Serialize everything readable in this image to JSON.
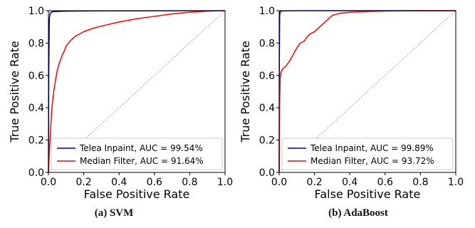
{
  "captions": [
    "(a) SVM",
    "(b) AdaBoost"
  ],
  "chart_data": [
    {
      "type": "line",
      "xlabel": "False Positive Rate",
      "ylabel": "True Positive Rate",
      "xlim": [
        0,
        1
      ],
      "ylim": [
        0,
        1
      ],
      "xticks": [
        "0.0",
        "0.2",
        "0.4",
        "0.6",
        "0.8",
        "1.0"
      ],
      "yticks": [
        "0.0",
        "0.2",
        "0.4",
        "0.6",
        "0.8",
        "1.0"
      ],
      "legend_position": "lower-right",
      "grid": false,
      "diagonal": {
        "style": "dotted",
        "color": "#888888"
      },
      "series": [
        {
          "name": "Telea Inpaint, AUC = 99.54%",
          "color": "#00008b",
          "x": [
            0,
            0.002,
            0.005,
            0.01,
            0.02,
            0.04,
            0.1,
            0.3,
            1.0
          ],
          "y": [
            0,
            0.6,
            0.95,
            0.985,
            0.993,
            0.995,
            0.997,
            0.999,
            1.0
          ]
        },
        {
          "name": "Median Filter, AUC = 91.64%",
          "color": "#ff0000",
          "x": [
            0,
            0.005,
            0.01,
            0.015,
            0.02,
            0.03,
            0.04,
            0.05,
            0.06,
            0.07,
            0.08,
            0.09,
            0.1,
            0.12,
            0.15,
            0.2,
            0.25,
            0.3,
            0.4,
            0.5,
            0.6,
            0.7,
            0.8,
            0.9,
            1.0
          ],
          "y": [
            0,
            0.12,
            0.22,
            0.32,
            0.4,
            0.5,
            0.57,
            0.63,
            0.67,
            0.7,
            0.73,
            0.75,
            0.78,
            0.81,
            0.84,
            0.87,
            0.89,
            0.905,
            0.93,
            0.95,
            0.965,
            0.98,
            0.99,
            0.997,
            1.0
          ]
        }
      ]
    },
    {
      "type": "line",
      "xlabel": "False Positive Rate",
      "ylabel": "True Positive Rate",
      "xlim": [
        0,
        1
      ],
      "ylim": [
        0,
        1
      ],
      "xticks": [
        "0.0",
        "0.2",
        "0.4",
        "0.6",
        "0.8",
        "1.0"
      ],
      "yticks": [
        "0.0",
        "0.2",
        "0.4",
        "0.6",
        "0.8",
        "1.0"
      ],
      "legend_position": "lower-right",
      "grid": false,
      "diagonal": {
        "style": "dotted",
        "color": "#888888"
      },
      "series": [
        {
          "name": "Telea Inpaint, AUC = 99.89%",
          "color": "#00008b",
          "x": [
            0,
            0.001,
            0.003,
            0.006,
            0.01,
            0.03,
            0.1,
            1.0
          ],
          "y": [
            0,
            0.7,
            0.97,
            0.993,
            0.997,
            0.999,
            1.0,
            1.0
          ]
        },
        {
          "name": "Median Filter, AUC = 93.72%",
          "color": "#ff0000",
          "x": [
            0,
            0.003,
            0.006,
            0.01,
            0.02,
            0.04,
            0.06,
            0.08,
            0.1,
            0.12,
            0.14,
            0.16,
            0.18,
            0.2,
            0.22,
            0.25,
            0.28,
            0.3,
            0.33,
            0.35,
            0.4,
            0.5,
            0.6,
            0.8,
            1.0
          ],
          "y": [
            0,
            0.45,
            0.58,
            0.62,
            0.64,
            0.66,
            0.69,
            0.73,
            0.77,
            0.8,
            0.81,
            0.84,
            0.86,
            0.87,
            0.89,
            0.92,
            0.95,
            0.97,
            0.98,
            0.985,
            0.99,
            0.995,
            0.998,
            1.0,
            1.0
          ]
        }
      ]
    }
  ]
}
